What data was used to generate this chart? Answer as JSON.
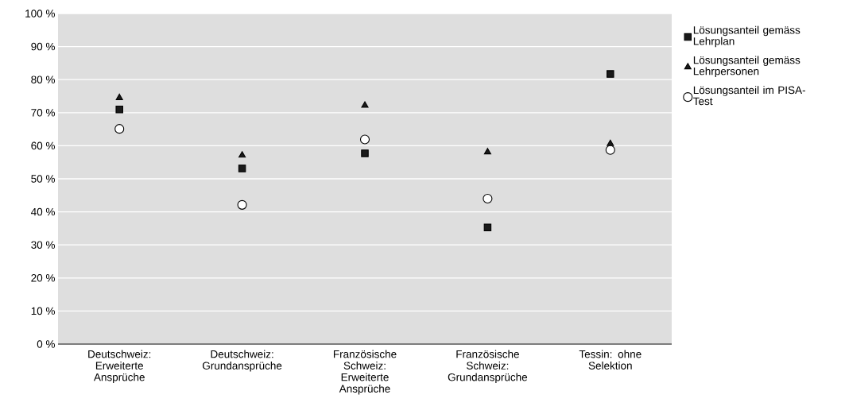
{
  "chart_data": {
    "type": "scatter",
    "categories": [
      "Deutschweiz: Erweiterte Ansprüche",
      "Deutschweiz: Grundansprüche",
      "Französische Schweiz: Erweiterte Ansprüche",
      "Französische Schweiz: Grundansprüche",
      "Tessin: ohne Selektion"
    ],
    "series": [
      {
        "name": "Lösungsanteil gemäss Lehrplan",
        "color": "#1a1a1a",
        "marker": "square",
        "values": [
          71.0,
          53.1,
          57.7,
          35.3,
          81.7
        ]
      },
      {
        "name": "Lösungsanteil gemäss Lehrpersonen",
        "color": "#1a1a1a",
        "marker": "triangle",
        "values": [
          74.5,
          57.1,
          72.2,
          58.1,
          60.6
        ]
      },
      {
        "name": "Lösungsanteil im PISA-Test",
        "color": "#ffffff",
        "marker": "circle",
        "values": [
          65.1,
          42.1,
          61.9,
          44.0,
          58.7
        ]
      }
    ],
    "ylim": [
      0,
      100
    ],
    "yticks": [
      {
        "value": 0,
        "label": "0 %"
      },
      {
        "value": 10,
        "label": "10 %"
      },
      {
        "value": 20,
        "label": "20 %"
      },
      {
        "value": 30,
        "label": "30 %"
      },
      {
        "value": 40,
        "label": "40 %"
      },
      {
        "value": 50,
        "label": "50 %"
      },
      {
        "value": 60,
        "label": "60 %"
      },
      {
        "value": 70,
        "label": "70 %"
      },
      {
        "value": 80,
        "label": "80 %"
      },
      {
        "value": 90,
        "label": "90 %"
      },
      {
        "value": 100,
        "label": "100 %"
      }
    ],
    "grid": "y",
    "legend": "top right"
  }
}
